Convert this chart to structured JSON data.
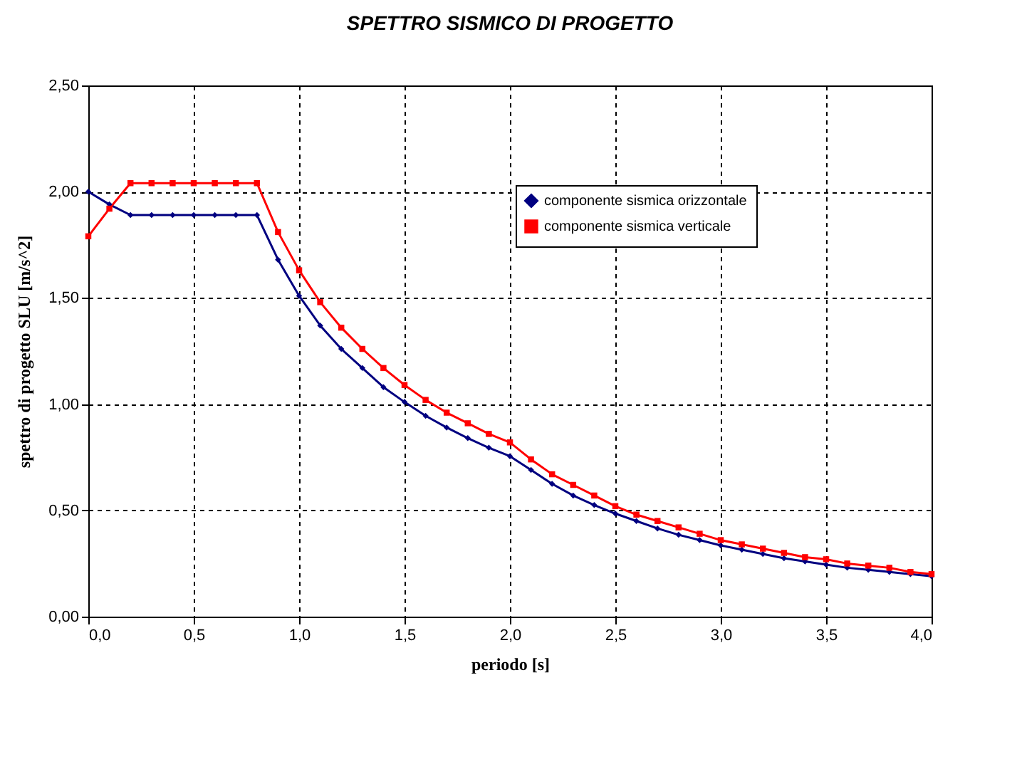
{
  "chart_data": {
    "type": "line",
    "title": "SPETTRO SISMICO DI PROGETTO",
    "xlabel": "periodo [s]",
    "ylabel": "spettro di progetto SLU [m/s^2]",
    "x": [
      0,
      0.1,
      0.2,
      0.3,
      0.4,
      0.5,
      0.6,
      0.7,
      0.8,
      0.9,
      1.0,
      1.1,
      1.2,
      1.3,
      1.4,
      1.5,
      1.6,
      1.7,
      1.8,
      1.9,
      2.0,
      2.1,
      2.2,
      2.3,
      2.4,
      2.5,
      2.6,
      2.7,
      2.8,
      2.9,
      3.0,
      3.1,
      3.2,
      3.3,
      3.4,
      3.5,
      3.6,
      3.7,
      3.8,
      3.9,
      4.0
    ],
    "series": [
      {
        "name": "componente sismica orizzontale",
        "color": "#000080",
        "marker": "diamond",
        "values": [
          2.0,
          1.94,
          1.89,
          1.89,
          1.89,
          1.89,
          1.89,
          1.89,
          1.89,
          1.68,
          1.51,
          1.37,
          1.26,
          1.17,
          1.08,
          1.01,
          0.945,
          0.89,
          0.84,
          0.795,
          0.755,
          0.69,
          0.625,
          0.57,
          0.525,
          0.485,
          0.45,
          0.415,
          0.385,
          0.36,
          0.335,
          0.315,
          0.295,
          0.275,
          0.26,
          0.245,
          0.23,
          0.22,
          0.21,
          0.2,
          0.19
        ]
      },
      {
        "name": "componente sismica verticale",
        "color": "#ff0000",
        "marker": "square",
        "values": [
          1.79,
          1.92,
          2.04,
          2.04,
          2.04,
          2.04,
          2.04,
          2.04,
          2.04,
          1.81,
          1.63,
          1.48,
          1.36,
          1.26,
          1.17,
          1.09,
          1.02,
          0.96,
          0.91,
          0.86,
          0.82,
          0.74,
          0.67,
          0.62,
          0.57,
          0.52,
          0.48,
          0.45,
          0.42,
          0.39,
          0.36,
          0.34,
          0.32,
          0.3,
          0.28,
          0.27,
          0.25,
          0.24,
          0.23,
          0.21,
          0.2
        ]
      }
    ],
    "xlim": [
      0,
      4.0
    ],
    "ylim": [
      0,
      2.5
    ],
    "xticks": [
      {
        "value": 0,
        "label": "0,0"
      },
      {
        "value": 0.5,
        "label": "0,5"
      },
      {
        "value": 1.0,
        "label": "1,0"
      },
      {
        "value": 1.5,
        "label": "1,5"
      },
      {
        "value": 2.0,
        "label": "2,0"
      },
      {
        "value": 2.5,
        "label": "2,5"
      },
      {
        "value": 3.0,
        "label": "3,0"
      },
      {
        "value": 3.5,
        "label": "3,5"
      },
      {
        "value": 4.0,
        "label": "4,0"
      }
    ],
    "yticks": [
      {
        "value": 0,
        "label": "0,00"
      },
      {
        "value": 0.5,
        "label": "0,50"
      },
      {
        "value": 1.0,
        "label": "1,00"
      },
      {
        "value": 1.5,
        "label": "1,50"
      },
      {
        "value": 2.0,
        "label": "2,00"
      },
      {
        "value": 2.5,
        "label": "2,50"
      }
    ],
    "grid": true,
    "legend": "top right",
    "line_style": "solid"
  }
}
